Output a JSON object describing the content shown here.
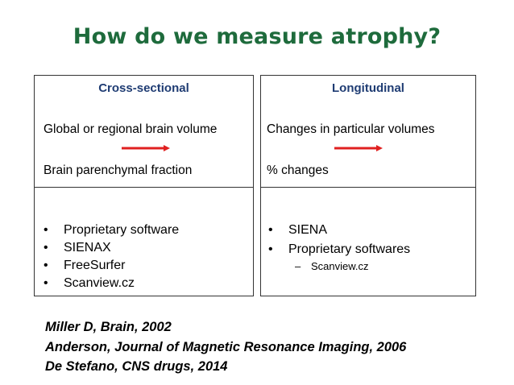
{
  "title": "How do we measure atrophy?",
  "colors": {
    "title": "#1e6b3c",
    "column_heading": "#1f3c73",
    "arrow": "#e02020"
  },
  "left_panel": {
    "heading": "Cross-sectional",
    "line1": "Global or regional brain volume",
    "line2": "Brain parenchymal fraction",
    "arrow_icon": "right-arrow-icon",
    "bullets": [
      "Proprietary software",
      "SIENAX",
      "FreeSurfer",
      "Scanview.cz"
    ]
  },
  "right_panel": {
    "heading": "Longitudinal",
    "line1": "Changes in particular volumes",
    "line2": "% changes",
    "arrow_icon": "right-arrow-icon",
    "bullets": [
      "SIENA",
      "Proprietary softwares"
    ],
    "sub_bullet": "Scanview.cz"
  },
  "bullet_glyph": "•",
  "dash_glyph": "–",
  "references": [
    "Miller D, Brain, 2002",
    "Anderson, Journal of Magnetic Resonance Imaging, 2006",
    "De Stefano, CNS drugs, 2014"
  ]
}
